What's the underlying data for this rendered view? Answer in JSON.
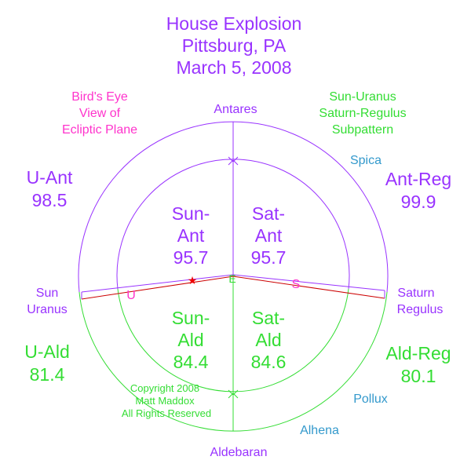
{
  "title": [
    "House Explosion",
    "Pittsburg, PA",
    "March 5, 2008"
  ],
  "note": [
    "Bird's Eye",
    "View of",
    "Ecliptic Plane"
  ],
  "subpattern": [
    "Sun-Uranus",
    "Saturn-Regulus",
    "Subpattern"
  ],
  "stars": {
    "top": "Antares",
    "bottom": "Aldebaran",
    "left": [
      "Sun",
      "Uranus"
    ],
    "right": [
      "Saturn",
      "Regulus"
    ],
    "spica": "Spica",
    "pollux": "Pollux",
    "alhena": "Alhena"
  },
  "markers": {
    "center": "E",
    "uranus": "U",
    "saturn": "S"
  },
  "outer": [
    {
      "label": "U-Ant",
      "value": 98.5
    },
    {
      "label": "Ant-Reg",
      "value": 99.9
    },
    {
      "label": "U-Ald",
      "value": 81.4
    },
    {
      "label": "Ald-Reg",
      "value": 80.1
    }
  ],
  "inner": [
    {
      "label": [
        "Sun-",
        "Ant"
      ],
      "value": 95.7
    },
    {
      "label": [
        "Sat-",
        "Ant"
      ],
      "value": 95.7
    },
    {
      "label": [
        "Sun-",
        "Ald"
      ],
      "value": 84.4
    },
    {
      "label": [
        "Sat-",
        "Ald"
      ],
      "value": 84.6
    }
  ],
  "copyright": [
    "Copyright 2008",
    "Matt Maddox",
    "All Rights Reserved"
  ]
}
